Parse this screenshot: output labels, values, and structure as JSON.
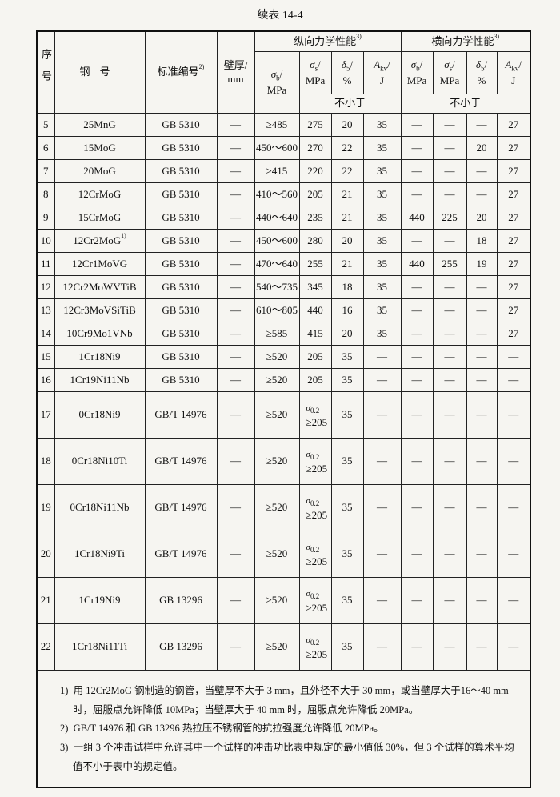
{
  "title": "续表 14-4",
  "header": {
    "no": "序号",
    "steel": "钢号",
    "standard": {
      "text": "标准编号",
      "note": "2)"
    },
    "thickness": [
      "壁厚/",
      "mm"
    ],
    "longitudinal": {
      "text": "纵向力学性能",
      "note": "3)"
    },
    "transverse": {
      "text": "横向力学性能",
      "note": "3)"
    },
    "columns": [
      {
        "symbol": "σ",
        "sub": "b",
        "slash": "/",
        "unit": "MPa"
      },
      {
        "symbol": "σ",
        "sub": "s",
        "slash": "/",
        "unit": "MPa"
      },
      {
        "symbol": "δ",
        "sub": "5",
        "slash": "/",
        "unit": "%"
      },
      {
        "symbol": "A",
        "sub": "kv",
        "slash": "/",
        "unit": "J"
      },
      {
        "symbol": "σ",
        "sub": "b",
        "slash": "/",
        "unit": "MPa"
      },
      {
        "symbol": "σ",
        "sub": "s",
        "slash": "/",
        "unit": "MPa"
      },
      {
        "symbol": "δ",
        "sub": "5",
        "slash": "/",
        "unit": "%"
      },
      {
        "symbol": "A",
        "sub": "kv",
        "slash": "/",
        "unit": "J"
      }
    ],
    "min_longitudinal": "不小于",
    "min_transverse": "不小于"
  },
  "rows": [
    [
      "5",
      "25MnG",
      "GB 5310",
      "—",
      "≥485",
      "275",
      "20",
      "35",
      "—",
      "—",
      "—",
      "27"
    ],
    [
      "6",
      "15MoG",
      "GB 5310",
      "—",
      "450～600",
      "270",
      "22",
      "35",
      "—",
      "—",
      "20",
      "27"
    ],
    [
      "7",
      "20MoG",
      "GB 5310",
      "—",
      "≥415",
      "220",
      "22",
      "35",
      "—",
      "—",
      "—",
      "27"
    ],
    [
      "8",
      "12CrMoG",
      "GB 5310",
      "—",
      "410～560",
      "205",
      "21",
      "35",
      "—",
      "—",
      "—",
      "27"
    ],
    [
      "9",
      "15CrMoG",
      "GB 5310",
      "—",
      "440～640",
      "235",
      "21",
      "35",
      "440",
      "225",
      "20",
      "27"
    ],
    [
      "10",
      {
        "text": "12Cr2MoG",
        "note": "1)"
      },
      "GB 5310",
      "—",
      "450～600",
      "280",
      "20",
      "35",
      "—",
      "—",
      "18",
      "27"
    ],
    [
      "11",
      "12Cr1MoVG",
      "GB 5310",
      "—",
      "470～640",
      "255",
      "21",
      "35",
      "440",
      "255",
      "19",
      "27"
    ],
    [
      "12",
      "12Cr2MoWVTiB",
      "GB 5310",
      "—",
      "540～735",
      "345",
      "18",
      "35",
      "—",
      "—",
      "—",
      "27"
    ],
    [
      "13",
      "12Cr3MoVSiTiB",
      "GB 5310",
      "—",
      "610～805",
      "440",
      "16",
      "35",
      "—",
      "—",
      "—",
      "27"
    ],
    [
      "14",
      "10Cr9Mo1VNb",
      "GB 5310",
      "—",
      "≥585",
      "415",
      "20",
      "35",
      "—",
      "—",
      "—",
      "27"
    ],
    [
      "15",
      "1Cr18Ni9",
      "GB 5310",
      "—",
      "≥520",
      "205",
      "35",
      "—",
      "—",
      "—",
      "—",
      "—"
    ],
    [
      "16",
      "1Cr19Ni11Nb",
      "GB 5310",
      "—",
      "≥520",
      "205",
      "35",
      "—",
      "—",
      "—",
      "—",
      "—"
    ],
    [
      "17",
      "0Cr18Ni9",
      "GB/T 14976",
      "—",
      "≥520",
      {
        "symbol": "σ",
        "sub": "0.2",
        "value": "≥205"
      },
      "35",
      "—",
      "—",
      "—",
      "—",
      "—"
    ],
    [
      "18",
      "0Cr18Ni10Ti",
      "GB/T 14976",
      "—",
      "≥520",
      {
        "symbol": "σ",
        "sub": "0.2",
        "value": "≥205"
      },
      "35",
      "—",
      "—",
      "—",
      "—",
      "—"
    ],
    [
      "19",
      "0Cr18Ni11Nb",
      "GB/T 14976",
      "—",
      "≥520",
      {
        "symbol": "σ",
        "sub": "0.2",
        "value": "≥205"
      },
      "35",
      "—",
      "—",
      "—",
      "—",
      "—"
    ],
    [
      "20",
      "1Cr18Ni9Ti",
      "GB/T 14976",
      "—",
      "≥520",
      {
        "symbol": "σ",
        "sub": "0.2",
        "value": "≥205"
      },
      "35",
      "—",
      "—",
      "—",
      "—",
      "—"
    ],
    [
      "21",
      "1Cr19Ni9",
      "GB 13296",
      "—",
      "≥520",
      {
        "symbol": "σ",
        "sub": "0.2",
        "value": "≥205"
      },
      "35",
      "—",
      "—",
      "—",
      "—",
      "—"
    ],
    [
      "22",
      "1Cr18Ni11Ti",
      "GB 13296",
      "—",
      "≥520",
      {
        "symbol": "σ",
        "sub": "0.2",
        "value": "≥205"
      },
      "35",
      "—",
      "—",
      "—",
      "—",
      "—"
    ]
  ],
  "notes": [
    {
      "num": "1)",
      "text": "用 12Cr2MoG 钢制造的钢管，当壁厚不大于 3 mm，且外径不大于 30 mm，或当壁厚大于16～40 mm 时，屈服点允许降低 10MPa；当壁厚大于 40 mm 时，屈服点允许降低 20MPa。"
    },
    {
      "num": "2)",
      "text": "GB/T 14976 和 GB 13296 热拉压不锈钢管的抗拉强度允许降低 20MPa。"
    },
    {
      "num": "3)",
      "text": "一组 3 个冲击试样中允许其中一个试样的冲击功比表中规定的最小值低 30%，但 3 个试样的算术平均值不小于表中的规定值。"
    }
  ]
}
